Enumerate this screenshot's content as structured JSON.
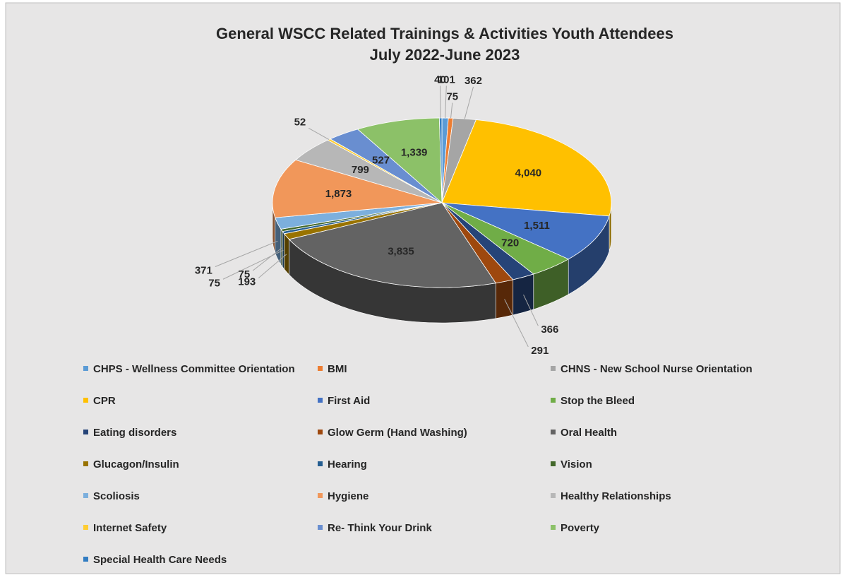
{
  "chart_data": {
    "type": "pie",
    "title": "General WSCC Related Trainings & Activities Youth Attendees",
    "subtitle": "July 2022-June 2023",
    "categories": [
      "CHPS - Wellness Committee Orientation",
      "BMI",
      "CHNS - New School Nurse Orientation",
      "CPR",
      "First Aid",
      "Stop the Bleed",
      "Eating disorders",
      "Glow Germ (Hand Washing)",
      "Oral Health",
      "Glucagon/Insulin",
      "Hearing",
      "Vision",
      "Scoliosis",
      "Hygiene",
      "Healthy Relationships",
      "Internet Safety",
      "Re- Think Your Drink",
      "Poverty",
      "Special Health Care Needs"
    ],
    "values": [
      101,
      75,
      362,
      4040,
      1511,
      720,
      366,
      291,
      3835,
      193,
      75,
      75,
      371,
      1873,
      799,
      52,
      527,
      1339,
      40
    ],
    "value_labels": [
      "101",
      "75",
      "362",
      "4,040",
      "1,511",
      "720",
      "366",
      "291",
      "3,835",
      "193",
      "75",
      "75",
      "371",
      "1,873",
      "799",
      "52",
      "527",
      "1,339",
      "40"
    ],
    "colors": [
      "#5b9bd5",
      "#ed7d31",
      "#a5a5a5",
      "#ffc000",
      "#4472c4",
      "#70ad47",
      "#264478",
      "#9e480e",
      "#636363",
      "#997300",
      "#255e91",
      "#43682b",
      "#7cafdd",
      "#f1975a",
      "#b7b7b7",
      "#ffcd33",
      "#698ed0",
      "#8cc168",
      "#327dc2"
    ],
    "legend": "bottom"
  }
}
